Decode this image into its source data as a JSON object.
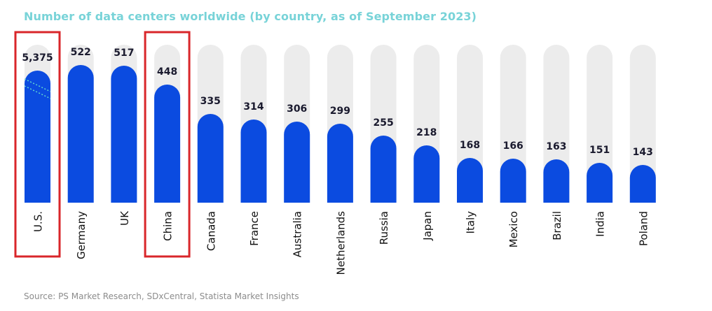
{
  "title": "Number of data centers worldwide (by country, as of September 2023)",
  "source": "Source: PS Market Research, SDxCentral, Statista Market Insights",
  "colors": {
    "bar": "#0b4be0",
    "track": "#ececec",
    "title": "#78d3d8",
    "highlight": "#d9262a",
    "value_label": "#1a1a2e",
    "break_mark": "#5fd6d0"
  },
  "chart_data": {
    "type": "bar",
    "title": "Number of data centers worldwide (by country, as of September 2023)",
    "categories": [
      "U.S.",
      "Germany",
      "UK",
      "China",
      "Canada",
      "France",
      "Australia",
      "Netherlands",
      "Russia",
      "Japan",
      "Italy",
      "Mexico",
      "Brazil",
      "India",
      "Poland"
    ],
    "values": [
      5375,
      522,
      517,
      448,
      335,
      314,
      306,
      299,
      255,
      218,
      168,
      166,
      163,
      151,
      143
    ],
    "value_labels": [
      "5,375",
      "522",
      "517",
      "448",
      "335",
      "314",
      "306",
      "299",
      "255",
      "218",
      "168",
      "166",
      "163",
      "151",
      "143"
    ],
    "highlighted": [
      "U.S.",
      "China"
    ],
    "broken_axis_category": "U.S.",
    "grid": false,
    "legend": "none"
  }
}
